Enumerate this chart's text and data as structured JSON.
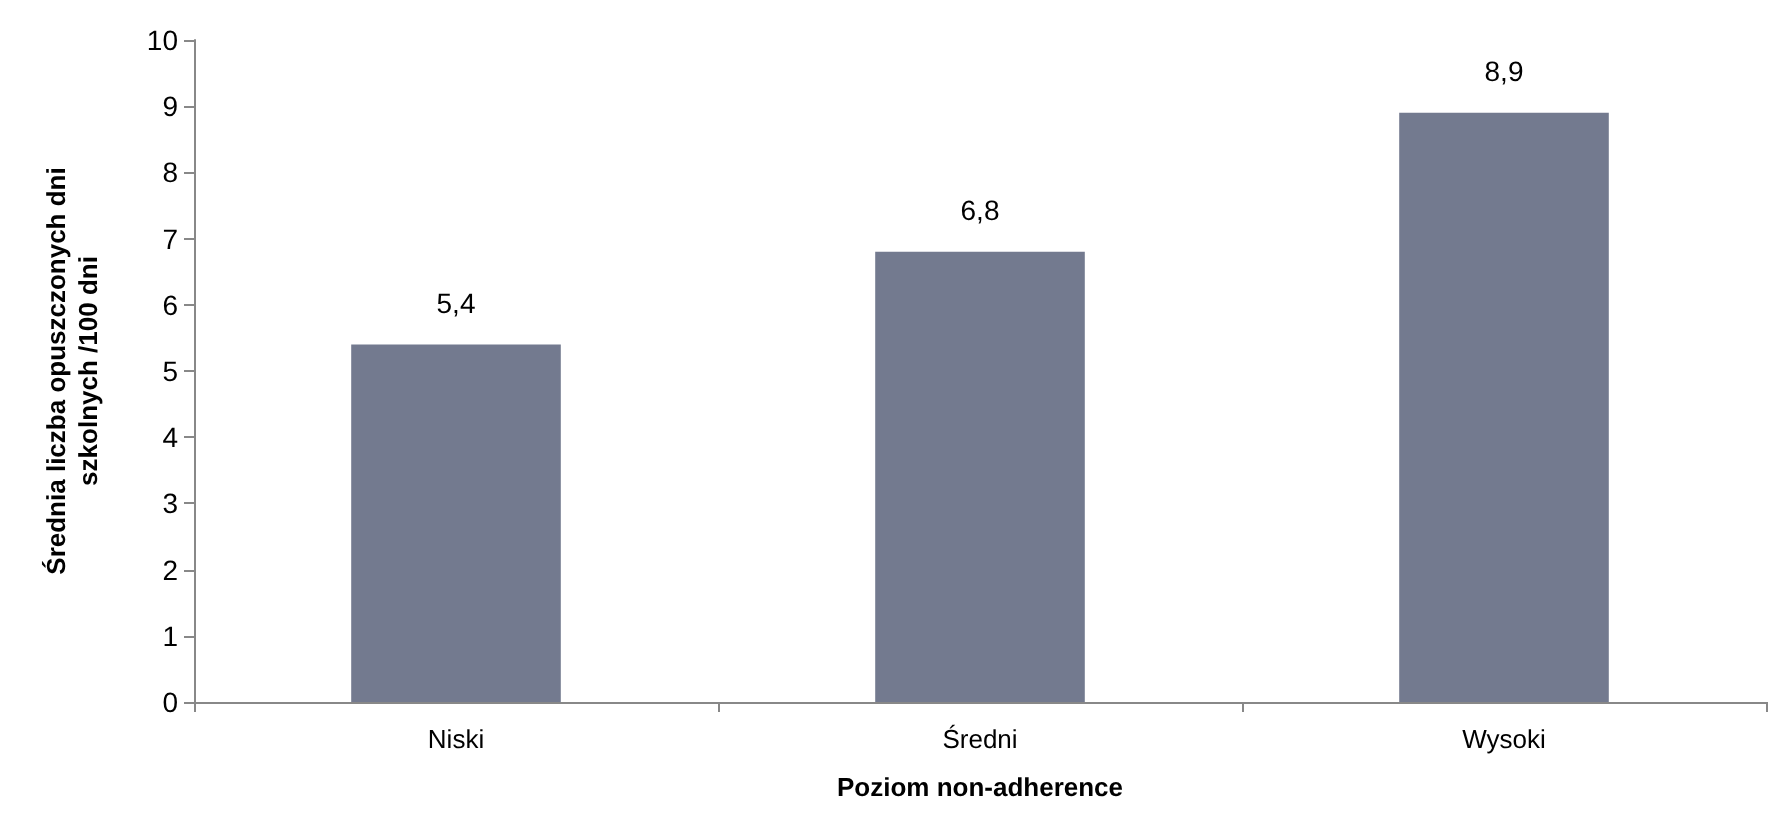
{
  "chart_data": {
    "type": "bar",
    "categories": [
      "Niski",
      "Średni",
      "Wysoki"
    ],
    "values": [
      5.4,
      6.8,
      8.9
    ],
    "value_labels": [
      "5,4",
      "6,8",
      "8,9"
    ],
    "color": "#737a8f",
    "xlabel": "Poziom non-adherence",
    "ylabel": "Średnia liczba opuszczonych dni\nszkolnych /100 dni",
    "ylim": [
      0,
      10
    ],
    "yticks": [
      0,
      1,
      2,
      3,
      4,
      5,
      6,
      7,
      8,
      9,
      10
    ],
    "grid": false
  }
}
